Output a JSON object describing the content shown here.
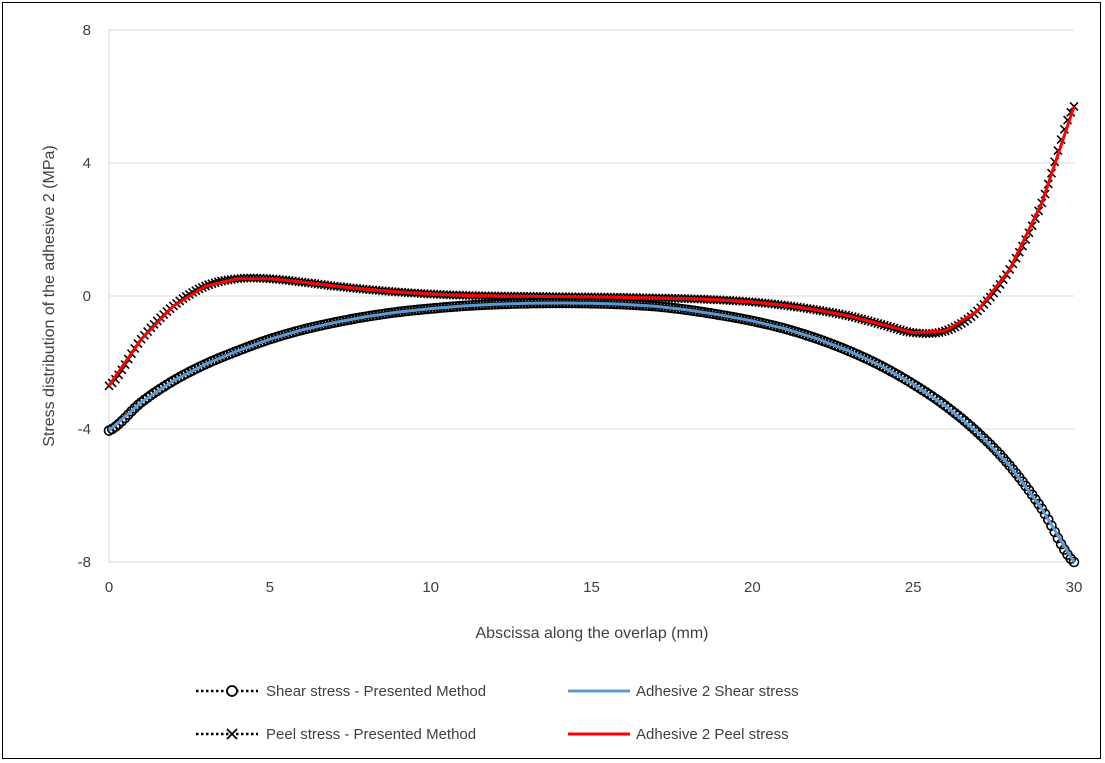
{
  "chart_data": {
    "type": "line",
    "title": "",
    "xlabel": "Abscissa along the overlap (mm)",
    "ylabel": "Stress distribution of the adhesive 2 (MPa)",
    "xlim": [
      0,
      30
    ],
    "ylim": [
      -8,
      8
    ],
    "xticks": [
      "0",
      "5",
      "10",
      "15",
      "20",
      "25",
      "30"
    ],
    "yticks": [
      "8",
      "4",
      "0",
      "-4",
      "-8"
    ],
    "grid": "horizontal",
    "legend_position": "bottom",
    "x": [
      0,
      1,
      2,
      3,
      4,
      5,
      6,
      7,
      8,
      9,
      10,
      11,
      12,
      13,
      14,
      15,
      16,
      17,
      18,
      19,
      20,
      21,
      22,
      23,
      24,
      25,
      26,
      27,
      28,
      29,
      30
    ],
    "series": [
      {
        "name": "Shear stress - Presented Method",
        "style": "dotted-marker-circle",
        "color": "#000000",
        "values": [
          -4.05,
          -3.2,
          -2.55,
          -2.05,
          -1.65,
          -1.3,
          -1.02,
          -0.8,
          -0.62,
          -0.48,
          -0.38,
          -0.3,
          -0.25,
          -0.22,
          -0.21,
          -0.22,
          -0.25,
          -0.31,
          -0.42,
          -0.57,
          -0.75,
          -0.98,
          -1.28,
          -1.65,
          -2.1,
          -2.65,
          -3.3,
          -4.1,
          -5.1,
          -6.4,
          -8.0
        ]
      },
      {
        "name": "Adhesive 2 Shear stress",
        "style": "solid",
        "color": "#5B9BD5",
        "values": [
          -4.05,
          -3.2,
          -2.55,
          -2.05,
          -1.65,
          -1.3,
          -1.02,
          -0.8,
          -0.62,
          -0.48,
          -0.38,
          -0.3,
          -0.25,
          -0.22,
          -0.21,
          -0.22,
          -0.25,
          -0.31,
          -0.42,
          -0.57,
          -0.75,
          -0.98,
          -1.28,
          -1.65,
          -2.1,
          -2.65,
          -3.3,
          -4.1,
          -5.1,
          -6.4,
          -8.0
        ]
      },
      {
        "name": "Peel stress - Presented Method",
        "style": "dotted-marker-x",
        "color": "#000000",
        "values": [
          -2.7,
          -1.3,
          -0.3,
          0.3,
          0.52,
          0.52,
          0.42,
          0.3,
          0.2,
          0.12,
          0.06,
          0.02,
          0.0,
          -0.01,
          -0.02,
          -0.03,
          -0.04,
          -0.06,
          -0.08,
          -0.12,
          -0.18,
          -0.28,
          -0.42,
          -0.6,
          -0.85,
          -1.1,
          -1.05,
          -0.45,
          0.8,
          2.8,
          5.7
        ]
      },
      {
        "name": "Adhesive 2 Peel stress",
        "style": "solid",
        "color": "#FF0000",
        "values": [
          -2.7,
          -1.3,
          -0.3,
          0.3,
          0.52,
          0.52,
          0.42,
          0.3,
          0.2,
          0.12,
          0.06,
          0.02,
          0.0,
          -0.01,
          -0.02,
          -0.03,
          -0.04,
          -0.06,
          -0.08,
          -0.12,
          -0.18,
          -0.28,
          -0.42,
          -0.6,
          -0.85,
          -1.1,
          -1.05,
          -0.45,
          0.8,
          2.8,
          5.7
        ]
      }
    ]
  }
}
